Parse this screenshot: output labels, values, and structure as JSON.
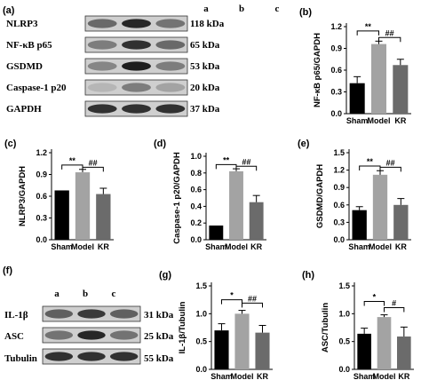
{
  "blot_top": {
    "panel_label": "(a)",
    "lanes": [
      "a",
      "b",
      "c"
    ],
    "rows": [
      {
        "label": "NLRP3",
        "size": "118 kDa",
        "intensity": [
          0.55,
          0.9,
          0.5
        ]
      },
      {
        "label": "NF-κB p65",
        "size": "65 kDa",
        "intensity": [
          0.45,
          0.85,
          0.55
        ]
      },
      {
        "label": "GSDMD",
        "size": "53 kDa",
        "intensity": [
          0.4,
          0.95,
          0.45
        ]
      },
      {
        "label": "Caspase-1 p20",
        "size": "20 kDa",
        "intensity": [
          0.15,
          0.45,
          0.25
        ]
      },
      {
        "label": "GAPDH",
        "size": "37 kDa",
        "intensity": [
          0.85,
          0.85,
          0.85
        ]
      }
    ]
  },
  "blot_bottom": {
    "panel_label": "(f)",
    "lanes": [
      "a",
      "b",
      "c"
    ],
    "rows": [
      {
        "label": "IL-1β",
        "size": "31 kDa",
        "intensity": [
          0.6,
          0.8,
          0.6
        ]
      },
      {
        "label": "ASC",
        "size": "25 kDa",
        "intensity": [
          0.5,
          0.9,
          0.5
        ]
      },
      {
        "label": "Tubulin",
        "size": "55 kDa",
        "intensity": [
          0.85,
          0.85,
          0.85
        ]
      }
    ]
  },
  "chart_data": [
    {
      "panel": "(b)",
      "type": "bar",
      "categories": [
        "Sham",
        "Model",
        "KR"
      ],
      "values": [
        0.42,
        0.96,
        0.67
      ],
      "errors": [
        0.09,
        0.04,
        0.08
      ],
      "colors": [
        "#000000",
        "#a3a3a3",
        "#6b6b6b"
      ],
      "ylabel": "NF-κB p65/GAPDH",
      "ylim": [
        0,
        1.2
      ],
      "yticks": [
        0.0,
        0.3,
        0.6,
        0.9,
        1.2
      ],
      "sig": [
        {
          "text": "**",
          "from": 0,
          "to": 1,
          "level": 1.14
        },
        {
          "text": "##",
          "from": 1,
          "to": 2,
          "level": 1.05
        }
      ]
    },
    {
      "panel": "(c)",
      "type": "bar",
      "categories": [
        "Sham",
        "Model",
        "KR"
      ],
      "values": [
        0.68,
        0.93,
        0.63
      ],
      "errors": [
        0.0,
        0.04,
        0.08
      ],
      "colors": [
        "#000000",
        "#a3a3a3",
        "#6b6b6b"
      ],
      "ylabel": "NLRP3/GAPDH",
      "ylim": [
        0,
        1.2
      ],
      "yticks": [
        0.0,
        0.3,
        0.6,
        0.9,
        1.2
      ],
      "sig": [
        {
          "text": "**",
          "from": 0,
          "to": 1,
          "level": 1.03
        },
        {
          "text": "##",
          "from": 1,
          "to": 2,
          "level": 1.0
        }
      ]
    },
    {
      "panel": "(d)",
      "type": "bar",
      "categories": [
        "Sham",
        "Model",
        "KR"
      ],
      "values": [
        0.17,
        0.82,
        0.45
      ],
      "errors": [
        0.0,
        0.03,
        0.08
      ],
      "colors": [
        "#000000",
        "#a3a3a3",
        "#6b6b6b"
      ],
      "ylabel": "Caspase-1 p20/GAPDH",
      "ylim": [
        0,
        1.0
      ],
      "yticks": [
        0.0,
        0.2,
        0.4,
        0.6,
        0.8,
        1.0
      ],
      "sig": [
        {
          "text": "**",
          "from": 0,
          "to": 1,
          "level": 0.9
        },
        {
          "text": "##",
          "from": 1,
          "to": 2,
          "level": 0.88
        }
      ]
    },
    {
      "panel": "(e)",
      "type": "bar",
      "categories": [
        "Sham",
        "Model",
        "KR"
      ],
      "values": [
        0.51,
        1.12,
        0.6
      ],
      "errors": [
        0.06,
        0.07,
        0.11
      ],
      "colors": [
        "#000000",
        "#a3a3a3",
        "#6b6b6b"
      ],
      "ylabel": "GSDMD/GAPDH",
      "ylim": [
        0,
        1.5
      ],
      "yticks": [
        0.0,
        0.3,
        0.6,
        0.9,
        1.2,
        1.5
      ],
      "sig": [
        {
          "text": "**",
          "from": 0,
          "to": 1,
          "level": 1.27
        },
        {
          "text": "##",
          "from": 1,
          "to": 2,
          "level": 1.25
        }
      ]
    },
    {
      "panel": "(g)",
      "type": "bar",
      "categories": [
        "Sham",
        "Model",
        "KR"
      ],
      "values": [
        0.7,
        1.0,
        0.66
      ],
      "errors": [
        0.12,
        0.06,
        0.13
      ],
      "colors": [
        "#000000",
        "#a3a3a3",
        "#6b6b6b"
      ],
      "ylabel": "IL-1β/Tubulin",
      "ylim": [
        0,
        1.5
      ],
      "yticks": [
        0.0,
        0.5,
        1.0,
        1.5
      ],
      "sig": [
        {
          "text": "*",
          "from": 0,
          "to": 1,
          "level": 1.25
        },
        {
          "text": "##",
          "from": 1,
          "to": 2,
          "level": 1.19
        }
      ]
    },
    {
      "panel": "(h)",
      "type": "bar",
      "categories": [
        "Sham",
        "Model",
        "KR"
      ],
      "values": [
        0.64,
        0.94,
        0.59
      ],
      "errors": [
        0.1,
        0.04,
        0.17
      ],
      "colors": [
        "#000000",
        "#a3a3a3",
        "#6b6b6b"
      ],
      "ylabel": "ASC/Tubulin",
      "ylim": [
        0,
        1.5
      ],
      "yticks": [
        0.0,
        0.5,
        1.0,
        1.5
      ],
      "sig": [
        {
          "text": "*",
          "from": 0,
          "to": 1,
          "level": 1.22
        },
        {
          "text": "#",
          "from": 1,
          "to": 2,
          "level": 1.11
        }
      ]
    }
  ]
}
